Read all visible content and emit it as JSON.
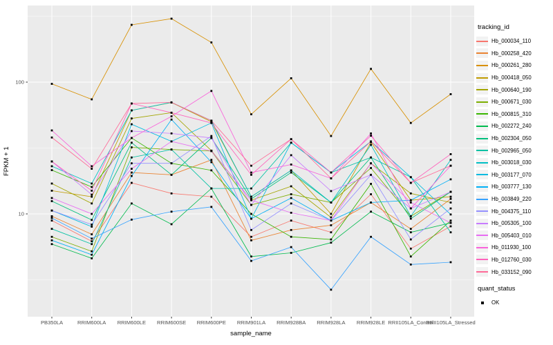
{
  "figure": {
    "background": "#FFFFFF",
    "panel_background": "#EBEBEB",
    "grid_color": "#FFFFFF",
    "tick_label_color": "#4D4D4D",
    "point_color": "#000000"
  },
  "axes": {
    "x_title": "sample_name",
    "y_title": "FPKM + 1",
    "y_tick_labels": [
      "10",
      "100"
    ],
    "y_tick_values": [
      10,
      100
    ]
  },
  "legend": {
    "tracking_title": "tracking_id",
    "quant_title": "quant_status",
    "ok_label": "OK"
  },
  "chart_data": {
    "type": "line",
    "x_type": "categorical",
    "y_scale": "log10",
    "xlabel": "sample_name",
    "ylabel": "FPKM + 1",
    "ylim": [
      1.7,
      380
    ],
    "y_ticks": [
      10,
      100
    ],
    "grid": true,
    "legend_position": "right",
    "point_marker": "black-square",
    "quant_status": "OK",
    "categories": [
      "PB350LA",
      "RRIM600LA",
      "RRIM600LE",
      "RRIM600SE",
      "RRIM600PE",
      "RRIM901LA",
      "RRIM928BA",
      "RRIM928LA",
      "RRIM928LE",
      "RRII105LA_Control",
      "RRII105LA_Stressed"
    ],
    "series": [
      {
        "name": "Hb_000034_110",
        "color": "#F8766D",
        "values": [
          8.9,
          6.2,
          17.2,
          14.3,
          13.5,
          6.7,
          8.9,
          7.25,
          14.1,
          5.45,
          8.05
        ]
      },
      {
        "name": "Hb_000258_420",
        "color": "#EA8331",
        "values": [
          9.6,
          7.0,
          20.6,
          19.8,
          25.7,
          6.3,
          7.55,
          8.2,
          12.2,
          7.7,
          13.0
        ]
      },
      {
        "name": "Hb_000261_280",
        "color": "#D89000",
        "values": [
          97,
          74,
          272,
          303,
          200,
          57,
          107,
          39,
          126,
          49,
          81
        ]
      },
      {
        "name": "Hb_000418_050",
        "color": "#C09B00",
        "values": [
          15,
          13.5,
          61,
          70,
          50,
          13.5,
          21.4,
          10.0,
          35,
          12.7,
          13.5
        ]
      },
      {
        "name": "Hb_000640_190",
        "color": "#A3A500",
        "values": [
          17,
          12,
          53,
          58.6,
          30.2,
          12.7,
          16.2,
          9.4,
          24.2,
          14.3,
          12.2
        ]
      },
      {
        "name": "Hb_000671_030",
        "color": "#7CAE00",
        "values": [
          6.7,
          5.2,
          32,
          30.8,
          30,
          11.7,
          14.1,
          12.2,
          22.3,
          9.6,
          14.7
        ]
      },
      {
        "name": "Hb_000815_310",
        "color": "#39B600",
        "values": [
          21.5,
          16,
          37.7,
          24.2,
          21.4,
          10,
          6.7,
          6.4,
          16.9,
          4.75,
          8.9
        ]
      },
      {
        "name": "Hb_002272_240",
        "color": "#00BB4E",
        "values": [
          5.9,
          4.6,
          12,
          8.35,
          15.6,
          4.75,
          5.06,
          6.05,
          10.4,
          7.25,
          8.55
        ]
      },
      {
        "name": "Hb_002304_050",
        "color": "#00BF7D",
        "values": [
          12.5,
          9.0,
          34.7,
          19.8,
          37.7,
          13.0,
          20.6,
          12.2,
          26.8,
          9.2,
          14.7
        ]
      },
      {
        "name": "Hb_002965_050",
        "color": "#00C1A3",
        "values": [
          7.7,
          5.9,
          26.8,
          30.8,
          15.6,
          15.6,
          34.7,
          20.6,
          26.8,
          19,
          7.25
        ]
      },
      {
        "name": "Hb_003018_030",
        "color": "#00BFC4",
        "values": [
          23,
          17,
          61,
          70.2,
          51,
          13.5,
          21.4,
          12.2,
          33.4,
          9.6,
          25.7
        ]
      },
      {
        "name": "Hb_003177_070",
        "color": "#00BAE0",
        "values": [
          10.6,
          8.0,
          47.9,
          35.5,
          49,
          9.2,
          34.7,
          20.6,
          35.5,
          19,
          9.9
        ]
      },
      {
        "name": "Hb_003777_130",
        "color": "#00B0F6",
        "values": [
          6.3,
          4.9,
          19.4,
          52,
          24.7,
          9.2,
          13.2,
          8.9,
          12.2,
          12.7,
          18.3
        ]
      },
      {
        "name": "Hb_003849_220",
        "color": "#35A2FF",
        "values": [
          9.3,
          6.5,
          9.05,
          10.4,
          11.3,
          4.4,
          5.6,
          2.66,
          6.7,
          4.13,
          4.3
        ]
      },
      {
        "name": "Hb_004375_110",
        "color": "#9590FF",
        "values": [
          10.6,
          8.3,
          24.2,
          24.2,
          39,
          7.55,
          12,
          8.9,
          19.8,
          6.4,
          11
        ]
      },
      {
        "name": "Hb_005305_100",
        "color": "#C77CFF",
        "values": [
          25,
          14,
          42.5,
          40.8,
          37.7,
          11.7,
          27.9,
          14.9,
          19.8,
          11,
          14.7
        ]
      },
      {
        "name": "Hb_005403_010",
        "color": "#E76BF3",
        "values": [
          13.2,
          10,
          22,
          35.5,
          30,
          12.7,
          10.2,
          8.9,
          24.2,
          12.2,
          8.55
        ]
      },
      {
        "name": "Hb_011930_100",
        "color": "#FA62DB",
        "values": [
          43,
          23,
          37.7,
          55,
          85.7,
          20.6,
          23.7,
          18.6,
          40.8,
          11,
          23.2
        ]
      },
      {
        "name": "Hb_012760_030",
        "color": "#FF62BC",
        "values": [
          25,
          15,
          68.8,
          58.6,
          49,
          19.8,
          36.9,
          20.6,
          39.2,
          17.2,
          28.4
        ]
      },
      {
        "name": "Hb_033152_090",
        "color": "#FF6A98",
        "values": [
          38,
          22,
          68.8,
          70.2,
          51,
          23.2,
          36.9,
          18.6,
          35.5,
          17.2,
          23.2
        ]
      }
    ]
  }
}
